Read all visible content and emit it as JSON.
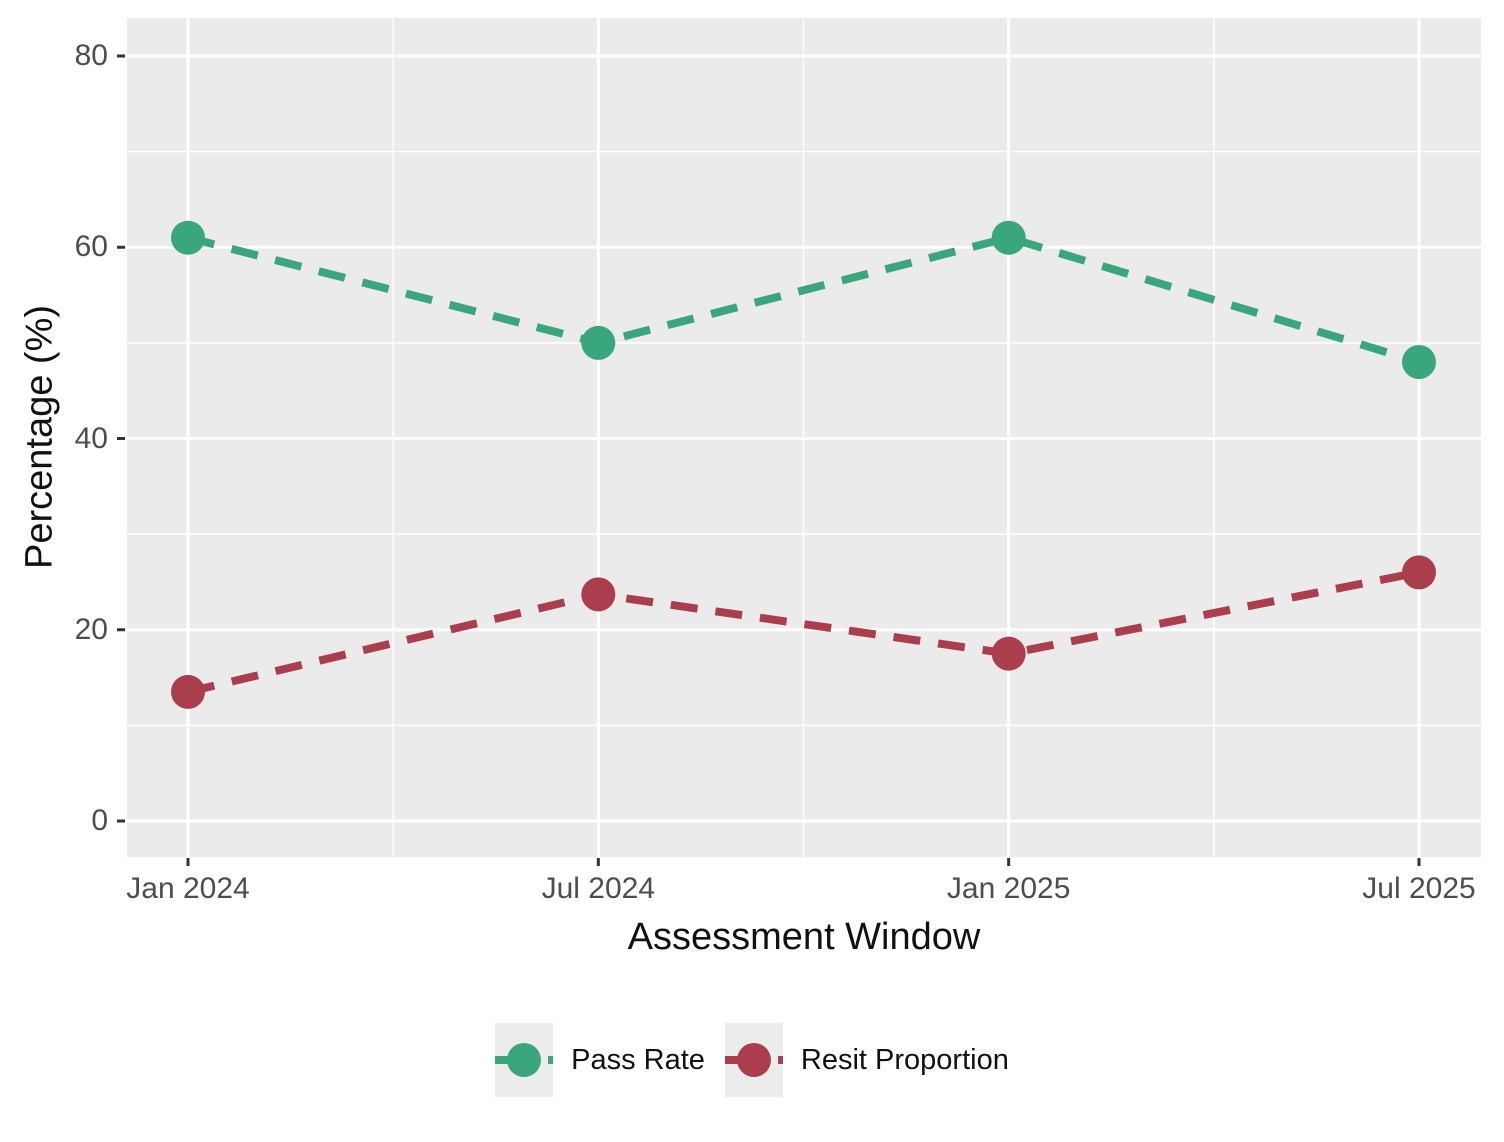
{
  "chart_data": {
    "type": "line",
    "title": "",
    "xlabel": "Assessment Window",
    "ylabel": "Percentage (%)",
    "x": [
      "Jan 2024",
      "Jul 2024",
      "Jan 2025",
      "Jul 2025"
    ],
    "series": [
      {
        "name": "Pass Rate",
        "color": "#3AA67C",
        "values": [
          61,
          50,
          61,
          48
        ]
      },
      {
        "name": "Resit Proportion",
        "color": "#AB3E4D",
        "values": [
          13.5,
          23.7,
          17.5,
          26
        ]
      }
    ],
    "y_ticks": [
      0,
      20,
      40,
      60,
      80
    ],
    "y_minor_ticks": [
      10,
      30,
      50,
      70
    ],
    "ylim": [
      -3.8,
      84
    ],
    "line_style": "dashed",
    "marker": "circle",
    "legend_position": "bottom",
    "panel_background": "#EBEBEB",
    "gridline_color": "#FFFFFF",
    "tick_text_color": "#4D4D4D",
    "legend_key_background": "#ECECEC"
  }
}
